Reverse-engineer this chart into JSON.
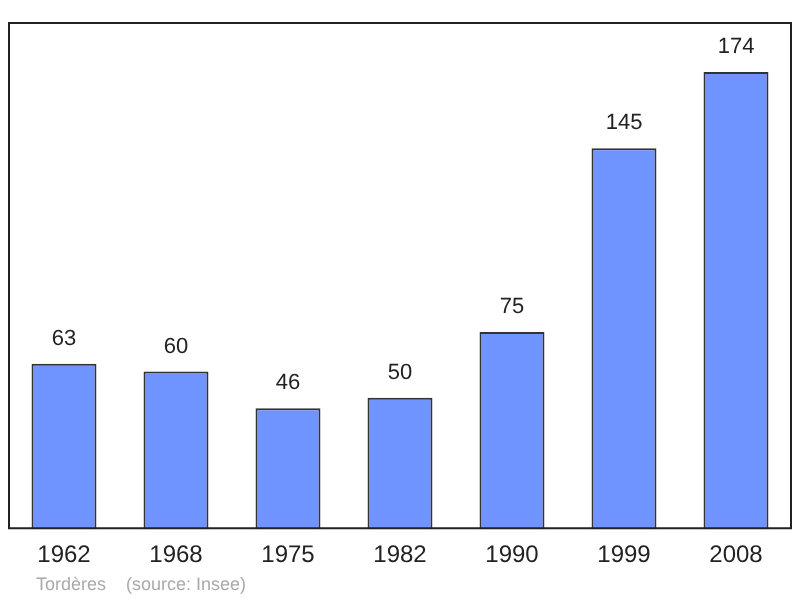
{
  "chart_data": {
    "type": "bar",
    "categories": [
      "1962",
      "1968",
      "1975",
      "1982",
      "1990",
      "1999",
      "2008"
    ],
    "values": [
      63,
      60,
      46,
      50,
      75,
      145,
      174
    ],
    "color": "#7094ff",
    "ylim": [
      0,
      193
    ],
    "data_labels": true,
    "grid": false,
    "legend": false,
    "annotations": [
      "Tordères    (source: Insee)"
    ]
  }
}
